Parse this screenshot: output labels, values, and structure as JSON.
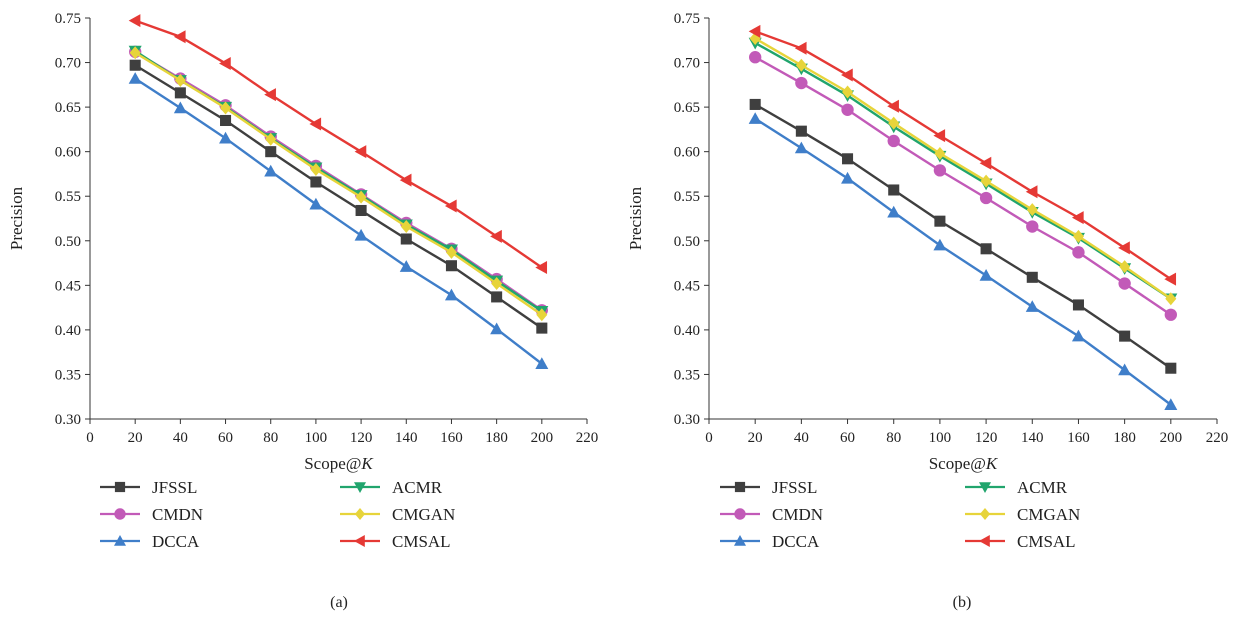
{
  "colors": {
    "JFSSL": "#3f3f3f",
    "CMDN": "#c25ab8",
    "DCCA": "#3f7ec9",
    "ACMR": "#21a56d",
    "CMGAN": "#e7d43a",
    "CMSAL": "#e53935"
  },
  "chart_data": [
    {
      "type": "line",
      "caption": "(a)",
      "xlabel_main": "Scope@",
      "xlabel_italic": "K",
      "ylabel": "Precision",
      "xlim": [
        0,
        220
      ],
      "ylim": [
        0.3,
        0.75
      ],
      "xticks": [
        "0",
        "20",
        "40",
        "60",
        "80",
        "100",
        "120",
        "140",
        "160",
        "180",
        "200",
        "220"
      ],
      "yticks": [
        "0.30",
        "0.35",
        "0.40",
        "0.45",
        "0.50",
        "0.55",
        "0.60",
        "0.65",
        "0.70",
        "0.75"
      ],
      "x": [
        20,
        40,
        60,
        80,
        100,
        120,
        140,
        160,
        180,
        200
      ],
      "series": [
        {
          "name": "JFSSL",
          "marker": "square",
          "values": [
            0.697,
            0.666,
            0.635,
            0.6,
            0.566,
            0.534,
            0.502,
            0.472,
            0.437,
            0.402
          ]
        },
        {
          "name": "CMDN",
          "marker": "circle",
          "values": [
            0.712,
            0.682,
            0.652,
            0.617,
            0.584,
            0.552,
            0.52,
            0.491,
            0.457,
            0.422
          ]
        },
        {
          "name": "DCCA",
          "marker": "triangle-up",
          "values": [
            0.682,
            0.649,
            0.615,
            0.578,
            0.541,
            0.506,
            0.471,
            0.439,
            0.401,
            0.362
          ]
        },
        {
          "name": "ACMR",
          "marker": "triangle-down",
          "values": [
            0.713,
            0.68,
            0.65,
            0.615,
            0.582,
            0.551,
            0.518,
            0.49,
            0.455,
            0.421
          ]
        },
        {
          "name": "CMGAN",
          "marker": "diamond",
          "values": [
            0.711,
            0.68,
            0.649,
            0.614,
            0.58,
            0.549,
            0.516,
            0.487,
            0.452,
            0.417
          ]
        },
        {
          "name": "CMSAL",
          "marker": "triangle-left",
          "values": [
            0.747,
            0.729,
            0.699,
            0.664,
            0.631,
            0.6,
            0.568,
            0.539,
            0.505,
            0.47
          ]
        }
      ]
    },
    {
      "type": "line",
      "caption": "(b)",
      "xlabel_main": "Scope@",
      "xlabel_italic": "K",
      "ylabel": "Precision",
      "xlim": [
        0,
        220
      ],
      "ylim": [
        0.3,
        0.75
      ],
      "xticks": [
        "0",
        "20",
        "40",
        "60",
        "80",
        "100",
        "120",
        "140",
        "160",
        "180",
        "200",
        "220"
      ],
      "yticks": [
        "0.30",
        "0.35",
        "0.40",
        "0.45",
        "0.50",
        "0.55",
        "0.60",
        "0.65",
        "0.70",
        "0.75"
      ],
      "x": [
        20,
        40,
        60,
        80,
        100,
        120,
        140,
        160,
        180,
        200
      ],
      "series": [
        {
          "name": "JFSSL",
          "marker": "square",
          "values": [
            0.653,
            0.623,
            0.592,
            0.557,
            0.522,
            0.491,
            0.459,
            0.428,
            0.393,
            0.357
          ]
        },
        {
          "name": "CMDN",
          "marker": "circle",
          "values": [
            0.706,
            0.677,
            0.647,
            0.612,
            0.579,
            0.548,
            0.516,
            0.487,
            0.452,
            0.417
          ]
        },
        {
          "name": "DCCA",
          "marker": "triangle-up",
          "values": [
            0.637,
            0.604,
            0.57,
            0.532,
            0.495,
            0.461,
            0.426,
            0.393,
            0.355,
            0.316
          ]
        },
        {
          "name": "ACMR",
          "marker": "triangle-down",
          "values": [
            0.722,
            0.693,
            0.663,
            0.628,
            0.595,
            0.564,
            0.532,
            0.503,
            0.469,
            0.435
          ]
        },
        {
          "name": "CMGAN",
          "marker": "diamond",
          "values": [
            0.727,
            0.697,
            0.667,
            0.632,
            0.598,
            0.567,
            0.535,
            0.505,
            0.471,
            0.435
          ]
        },
        {
          "name": "CMSAL",
          "marker": "triangle-left",
          "values": [
            0.735,
            0.716,
            0.686,
            0.651,
            0.618,
            0.587,
            0.555,
            0.526,
            0.492,
            0.457
          ]
        }
      ]
    }
  ]
}
